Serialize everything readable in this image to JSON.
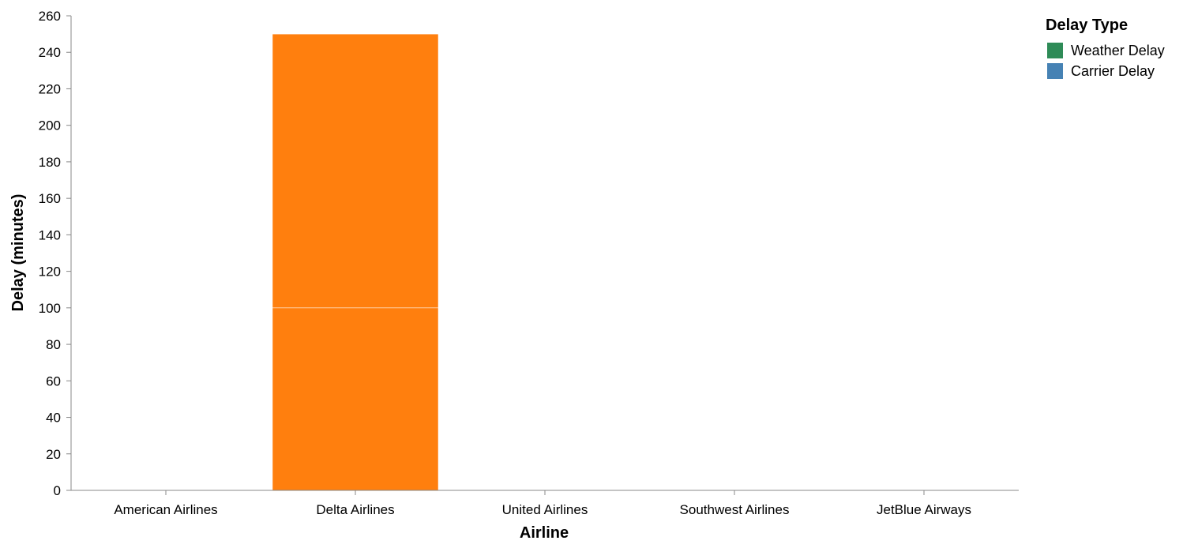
{
  "chart_data": {
    "type": "bar",
    "stacked": true,
    "categories": [
      "American Airlines",
      "Delta Airlines",
      "United Airlines",
      "Southwest Airlines",
      "JetBlue Airways"
    ],
    "segments": [
      {
        "category": "Delta Airlines",
        "y0": 0,
        "y1": 100,
        "color": "#ff7f0e"
      },
      {
        "category": "Delta Airlines",
        "y0": 100,
        "y1": 250,
        "color": "#ff7f0e"
      }
    ],
    "xlabel": "Airline",
    "ylabel": "Delay (minutes)",
    "ylim": [
      0,
      260
    ],
    "yticks": [
      0,
      20,
      40,
      60,
      80,
      100,
      120,
      140,
      160,
      180,
      200,
      220,
      240,
      260
    ],
    "grid": false,
    "legend": {
      "title": "Delay Type",
      "placement": "top-right",
      "entries": [
        {
          "label": "Weather Delay",
          "color": "#2e8b57"
        },
        {
          "label": "Carrier Delay",
          "color": "#4682b4"
        }
      ]
    }
  }
}
